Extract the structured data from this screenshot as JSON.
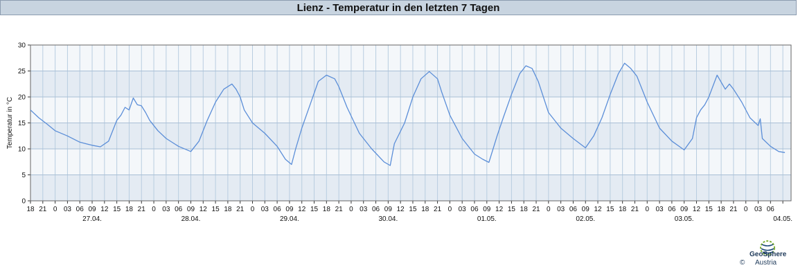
{
  "header": {
    "title": "Lienz - Temperatur in den letzten 7 Tagen"
  },
  "chart_data": {
    "type": "line",
    "title": "Lienz - Temperatur in den letzten 7 Tagen",
    "xlabel": "",
    "ylabel": "Temperatur in °C",
    "ylim": [
      0,
      30
    ],
    "yticks": [
      0,
      5,
      10,
      15,
      20,
      25,
      30
    ],
    "grid": true,
    "legend": "none",
    "line_color": "#5b8ed8",
    "x_unit": "hour",
    "xlim": [
      "2025-04-26T15:00",
      "2025-05-04T08:00"
    ],
    "hour_tick_labels": [
      "18",
      "21",
      "0",
      "03",
      "06",
      "09",
      "12",
      "15",
      "18",
      "21",
      "0",
      "03",
      "06",
      "09",
      "12",
      "15",
      "18",
      "21",
      "0",
      "03",
      "06",
      "09",
      "12",
      "15",
      "18",
      "21",
      "0",
      "03",
      "06",
      "09",
      "12",
      "15",
      "18",
      "21",
      "0",
      "03",
      "06",
      "09",
      "12",
      "15",
      "18",
      "21",
      "0",
      "03",
      "06",
      "09",
      "12",
      "15",
      "18",
      "21",
      "0",
      "03",
      "06",
      "09",
      "12",
      "15",
      "18",
      "21",
      "0",
      "03",
      "06"
    ],
    "day_labels": [
      "27.04.",
      "28.04.",
      "29.04.",
      "30.04.",
      "01.05.",
      "02.05.",
      "03.05.",
      "04.05."
    ],
    "series": [
      {
        "values": [
          [
            "2025-04-26T15:00",
            17.5
          ],
          [
            "2025-04-26T17:00",
            16.0
          ],
          [
            "2025-04-26T19:00",
            14.8
          ],
          [
            "2025-04-26T21:00",
            13.5
          ],
          [
            "2025-04-27T00:00",
            12.5
          ],
          [
            "2025-04-27T03:00",
            11.3
          ],
          [
            "2025-04-27T06:00",
            10.7
          ],
          [
            "2025-04-27T08:00",
            10.4
          ],
          [
            "2025-04-27T10:00",
            11.5
          ],
          [
            "2025-04-27T11:00",
            13.5
          ],
          [
            "2025-04-27T12:00",
            15.5
          ],
          [
            "2025-04-27T13:00",
            16.5
          ],
          [
            "2025-04-27T14:00",
            18.0
          ],
          [
            "2025-04-27T15:00",
            17.5
          ],
          [
            "2025-04-27T16:00",
            19.8
          ],
          [
            "2025-04-27T17:00",
            18.5
          ],
          [
            "2025-04-27T18:00",
            18.3
          ],
          [
            "2025-04-27T19:00",
            17.0
          ],
          [
            "2025-04-27T20:00",
            15.5
          ],
          [
            "2025-04-27T22:00",
            13.5
          ],
          [
            "2025-04-28T00:00",
            12.0
          ],
          [
            "2025-04-28T03:00",
            10.5
          ],
          [
            "2025-04-28T06:00",
            9.5
          ],
          [
            "2025-04-28T08:00",
            11.5
          ],
          [
            "2025-04-28T10:00",
            15.5
          ],
          [
            "2025-04-28T12:00",
            19.0
          ],
          [
            "2025-04-28T14:00",
            21.5
          ],
          [
            "2025-04-28T16:00",
            22.5
          ],
          [
            "2025-04-28T17:00",
            21.5
          ],
          [
            "2025-04-28T18:00",
            20.0
          ],
          [
            "2025-04-28T19:00",
            17.5
          ],
          [
            "2025-04-28T21:00",
            15.0
          ],
          [
            "2025-04-29T00:00",
            13.0
          ],
          [
            "2025-04-29T03:00",
            10.5
          ],
          [
            "2025-04-29T05:00",
            8.0
          ],
          [
            "2025-04-29T06:30",
            7.0
          ],
          [
            "2025-04-29T07:30",
            10.0
          ],
          [
            "2025-04-29T09:00",
            14.0
          ],
          [
            "2025-04-29T11:00",
            18.5
          ],
          [
            "2025-04-29T13:00",
            23.0
          ],
          [
            "2025-04-29T15:00",
            24.2
          ],
          [
            "2025-04-29T17:00",
            23.5
          ],
          [
            "2025-04-29T18:00",
            22.0
          ],
          [
            "2025-04-29T20:00",
            18.0
          ],
          [
            "2025-04-29T23:00",
            13.0
          ],
          [
            "2025-04-30T02:00",
            10.0
          ],
          [
            "2025-04-30T05:00",
            7.5
          ],
          [
            "2025-04-30T06:30",
            6.8
          ],
          [
            "2025-04-30T07:30",
            11.0
          ],
          [
            "2025-04-30T10:00",
            15.0
          ],
          [
            "2025-04-30T12:00",
            20.0
          ],
          [
            "2025-04-30T14:00",
            23.5
          ],
          [
            "2025-04-30T16:00",
            24.9
          ],
          [
            "2025-04-30T18:00",
            23.5
          ],
          [
            "2025-04-30T19:00",
            21.0
          ],
          [
            "2025-04-30T21:00",
            16.5
          ],
          [
            "2025-05-01T00:00",
            12.0
          ],
          [
            "2025-05-01T03:00",
            9.0
          ],
          [
            "2025-05-01T05:00",
            8.0
          ],
          [
            "2025-05-01T06:30",
            7.4
          ],
          [
            "2025-05-01T08:30",
            12.5
          ],
          [
            "2025-05-01T10:00",
            16.0
          ],
          [
            "2025-05-01T12:00",
            20.5
          ],
          [
            "2025-05-01T14:00",
            24.5
          ],
          [
            "2025-05-01T15:30",
            26.0
          ],
          [
            "2025-05-01T17:00",
            25.5
          ],
          [
            "2025-05-01T18:30",
            23.0
          ],
          [
            "2025-05-01T21:00",
            17.0
          ],
          [
            "2025-05-02T00:00",
            14.0
          ],
          [
            "2025-05-02T03:00",
            12.0
          ],
          [
            "2025-05-02T06:00",
            10.2
          ],
          [
            "2025-05-02T08:00",
            12.5
          ],
          [
            "2025-05-02T10:00",
            16.0
          ],
          [
            "2025-05-02T12:00",
            20.5
          ],
          [
            "2025-05-02T14:00",
            24.5
          ],
          [
            "2025-05-02T15:30",
            26.5
          ],
          [
            "2025-05-02T17:00",
            25.5
          ],
          [
            "2025-05-02T18:30",
            24.0
          ],
          [
            "2025-05-02T21:00",
            19.0
          ],
          [
            "2025-05-03T00:00",
            14.0
          ],
          [
            "2025-05-03T03:00",
            11.5
          ],
          [
            "2025-05-03T06:00",
            9.8
          ],
          [
            "2025-05-03T08:00",
            12.0
          ],
          [
            "2025-05-03T09:00",
            16.0
          ],
          [
            "2025-05-03T10:00",
            17.5
          ],
          [
            "2025-05-03T11:00",
            18.5
          ],
          [
            "2025-05-03T12:00",
            20.0
          ],
          [
            "2025-05-03T14:00",
            24.2
          ],
          [
            "2025-05-03T16:00",
            21.5
          ],
          [
            "2025-05-03T17:00",
            22.5
          ],
          [
            "2025-05-03T18:00",
            21.5
          ],
          [
            "2025-05-03T20:00",
            19.0
          ],
          [
            "2025-05-03T22:00",
            16.0
          ],
          [
            "2025-05-04T00:00",
            14.5
          ],
          [
            "2025-05-04T00:30",
            15.8
          ],
          [
            "2025-05-04T01:00",
            12.0
          ],
          [
            "2025-05-04T03:00",
            10.5
          ],
          [
            "2025-05-04T05:00",
            9.5
          ],
          [
            "2025-05-04T06:30",
            9.3
          ]
        ]
      }
    ]
  },
  "footer": {
    "logo_name": "GeoSphere",
    "logo_sub": "Austria",
    "copyright": "©"
  }
}
